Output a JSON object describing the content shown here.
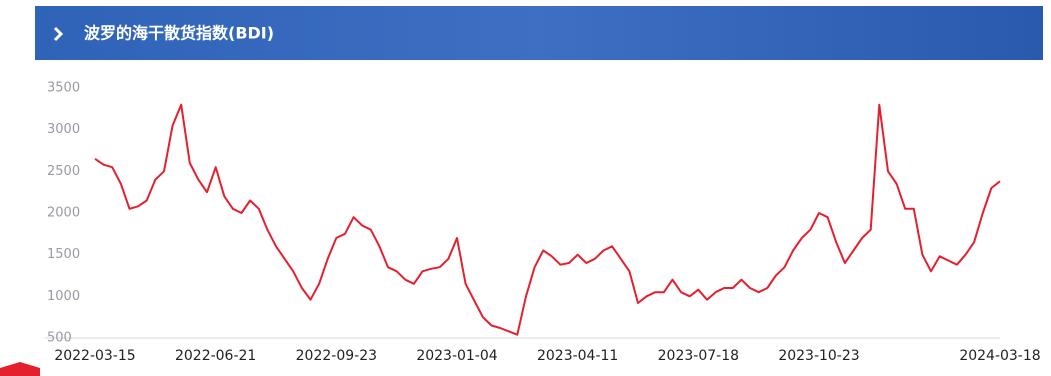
{
  "chart_data": {
    "type": "line",
    "title": "波罗的海干散货指数(BDI)",
    "categories": [
      "2022-03-15",
      null,
      null,
      null,
      null,
      null,
      null,
      null,
      null,
      null,
      null,
      null,
      null,
      null,
      "2022-06-21",
      null,
      null,
      null,
      null,
      null,
      null,
      null,
      null,
      null,
      null,
      null,
      null,
      null,
      "2022-09-23",
      null,
      null,
      null,
      null,
      null,
      null,
      null,
      null,
      null,
      null,
      null,
      null,
      null,
      "2023-01-04",
      null,
      null,
      null,
      null,
      null,
      null,
      null,
      null,
      null,
      null,
      null,
      null,
      null,
      "2023-04-11",
      null,
      null,
      null,
      null,
      null,
      null,
      null,
      null,
      null,
      null,
      null,
      null,
      null,
      "2023-07-18",
      null,
      null,
      null,
      null,
      null,
      null,
      null,
      null,
      null,
      null,
      null,
      null,
      null,
      "2023-10-23",
      null,
      null,
      null,
      null,
      null,
      null,
      null,
      null,
      null,
      null,
      null,
      null,
      null,
      null,
      null,
      null,
      null,
      null,
      null,
      null,
      "2024-03-18"
    ],
    "values": [
      2650,
      2580,
      2550,
      2350,
      2050,
      2080,
      2150,
      2400,
      2500,
      3050,
      3300,
      2600,
      2400,
      2250,
      2550,
      2200,
      2050,
      2000,
      2150,
      2050,
      1800,
      1600,
      1450,
      1300,
      1100,
      960,
      1150,
      1450,
      1700,
      1750,
      1950,
      1850,
      1800,
      1600,
      1350,
      1300,
      1200,
      1150,
      1300,
      1330,
      1350,
      1450,
      1700,
      1150,
      950,
      750,
      650,
      620,
      580,
      540,
      1000,
      1350,
      1550,
      1480,
      1380,
      1400,
      1500,
      1400,
      1450,
      1550,
      1600,
      1450,
      1300,
      920,
      1000,
      1050,
      1050,
      1200,
      1050,
      1000,
      1080,
      960,
      1050,
      1100,
      1100,
      1200,
      1100,
      1050,
      1100,
      1250,
      1350,
      1550,
      1700,
      1800,
      2000,
      1950,
      1650,
      1400,
      1550,
      1700,
      1800,
      3300,
      2500,
      2350,
      2050,
      2050,
      1500,
      1300,
      1480,
      1430,
      1380,
      1500,
      1650,
      2000,
      2300,
      2380
    ],
    "color": "#e5202e",
    "ylim": [
      500,
      3500
    ],
    "yticks": [
      500,
      1000,
      1500,
      2000,
      2500,
      3000,
      3500
    ]
  }
}
